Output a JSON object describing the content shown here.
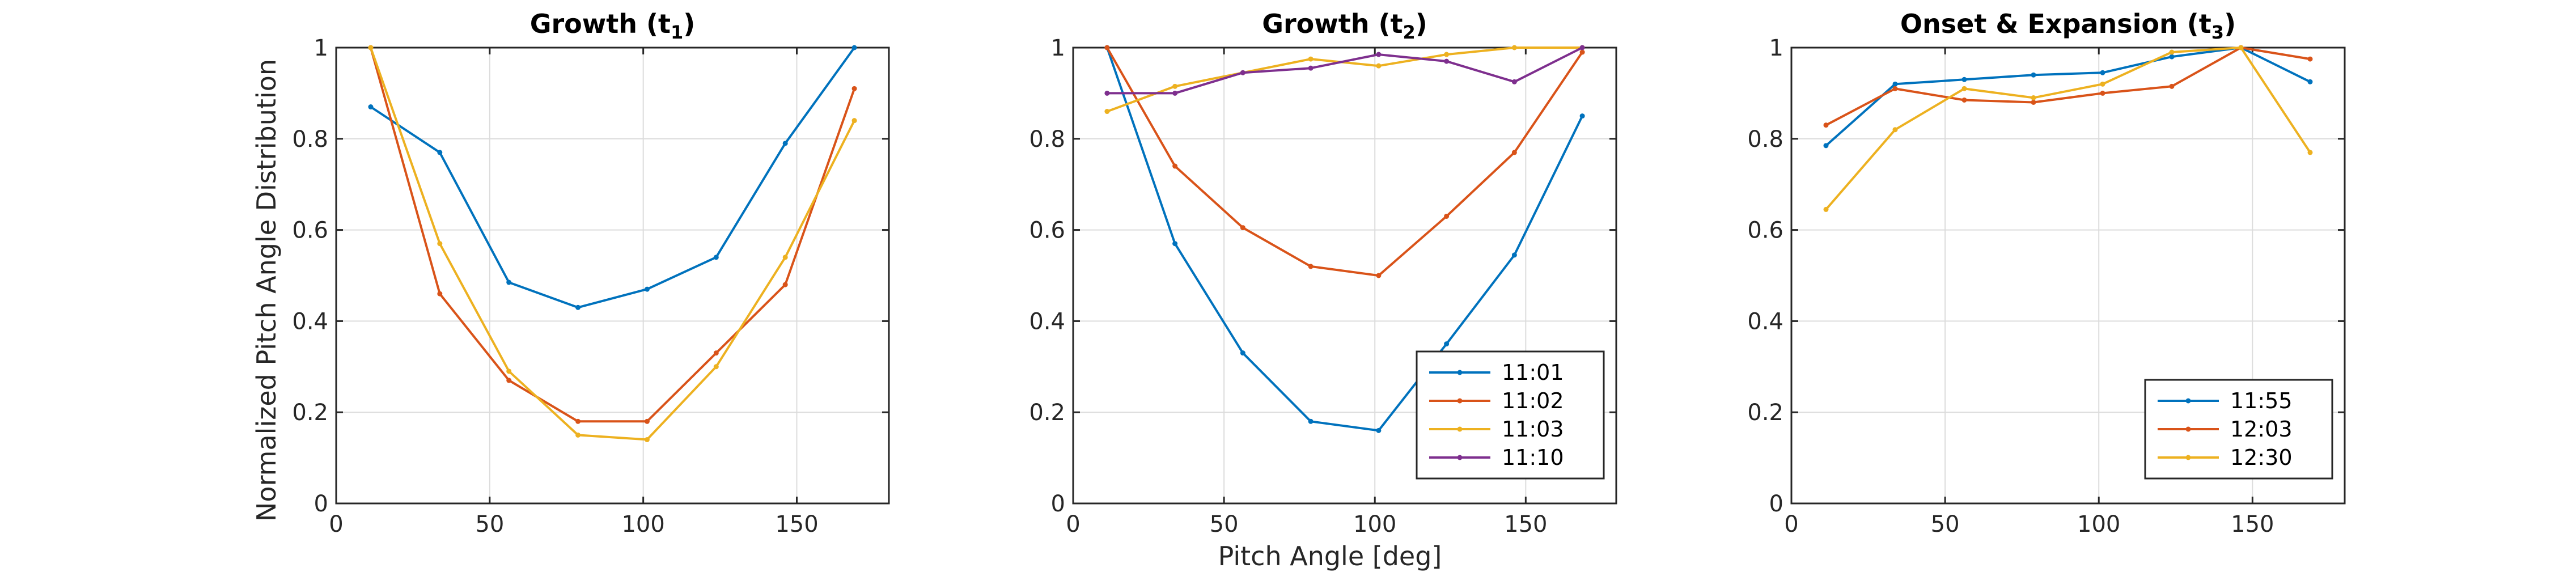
{
  "figure": {
    "xlabel": "Pitch Angle [deg]",
    "ylabel": "Normalized Pitch Angle Distribution"
  },
  "chart_data": [
    {
      "type": "line",
      "title": "Growth (t",
      "title_subscript": "1",
      "title_suffix": ")",
      "xlim": [
        0,
        180
      ],
      "ylim": [
        0,
        1
      ],
      "xticks": [
        "0",
        "50",
        "100",
        "150"
      ],
      "yticks": [
        "0",
        "0.2",
        "0.4",
        "0.6",
        "0.8",
        "1"
      ],
      "grid": true,
      "legend": null,
      "x": [
        11.25,
        33.75,
        56.25,
        78.75,
        101.25,
        123.75,
        146.25,
        168.75
      ],
      "series": [
        {
          "color": "#0072BD",
          "values": [
            0.87,
            0.77,
            0.485,
            0.43,
            0.47,
            0.54,
            0.79,
            1.0
          ]
        },
        {
          "color": "#D95319",
          "values": [
            1.0,
            0.46,
            0.27,
            0.18,
            0.18,
            0.33,
            0.48,
            0.91
          ]
        },
        {
          "color": "#EDB120",
          "values": [
            1.0,
            0.57,
            0.29,
            0.15,
            0.14,
            0.3,
            0.54,
            0.84
          ]
        }
      ]
    },
    {
      "type": "line",
      "title": "Growth (t",
      "title_subscript": "2",
      "title_suffix": ")",
      "xlim": [
        0,
        180
      ],
      "ylim": [
        0,
        1
      ],
      "xticks": [
        "0",
        "50",
        "100",
        "150"
      ],
      "yticks": [
        "0",
        "0.2",
        "0.4",
        "0.6",
        "0.8",
        "1"
      ],
      "grid": true,
      "legend": "bottom-right",
      "x": [
        11.25,
        33.75,
        56.25,
        78.75,
        101.25,
        123.75,
        146.25,
        168.75
      ],
      "series": [
        {
          "name": "11:01",
          "color": "#0072BD",
          "values": [
            1.0,
            0.57,
            0.33,
            0.18,
            0.16,
            0.35,
            0.545,
            0.85
          ]
        },
        {
          "name": "11:02",
          "color": "#D95319",
          "values": [
            1.0,
            0.74,
            0.605,
            0.52,
            0.5,
            0.63,
            0.77,
            0.99
          ]
        },
        {
          "name": "11:03",
          "color": "#EDB120",
          "values": [
            0.86,
            0.915,
            0.945,
            0.975,
            0.96,
            0.985,
            1.0,
            1.0
          ]
        },
        {
          "name": "11:10",
          "color": "#7E2F8E",
          "values": [
            0.9,
            0.9,
            0.945,
            0.955,
            0.985,
            0.97,
            0.925,
            1.0
          ]
        }
      ]
    },
    {
      "type": "line",
      "title": "Onset & Expansion (t",
      "title_subscript": "3",
      "title_suffix": ")",
      "xlim": [
        0,
        180
      ],
      "ylim": [
        0,
        1
      ],
      "xticks": [
        "0",
        "50",
        "100",
        "150"
      ],
      "yticks": [
        "0",
        "0.2",
        "0.4",
        "0.6",
        "0.8",
        "1"
      ],
      "grid": true,
      "legend": "bottom-right",
      "x": [
        11.25,
        33.75,
        56.25,
        78.75,
        101.25,
        123.75,
        146.25,
        168.75
      ],
      "series": [
        {
          "name": "11:55",
          "color": "#0072BD",
          "values": [
            0.785,
            0.92,
            0.93,
            0.94,
            0.945,
            0.98,
            1.0,
            0.925
          ]
        },
        {
          "name": "12:03",
          "color": "#D95319",
          "values": [
            0.83,
            0.91,
            0.885,
            0.88,
            0.9,
            0.915,
            1.0,
            0.975
          ]
        },
        {
          "name": "12:30",
          "color": "#EDB120",
          "values": [
            0.645,
            0.82,
            0.91,
            0.89,
            0.92,
            0.99,
            1.0,
            0.77
          ]
        }
      ]
    }
  ]
}
